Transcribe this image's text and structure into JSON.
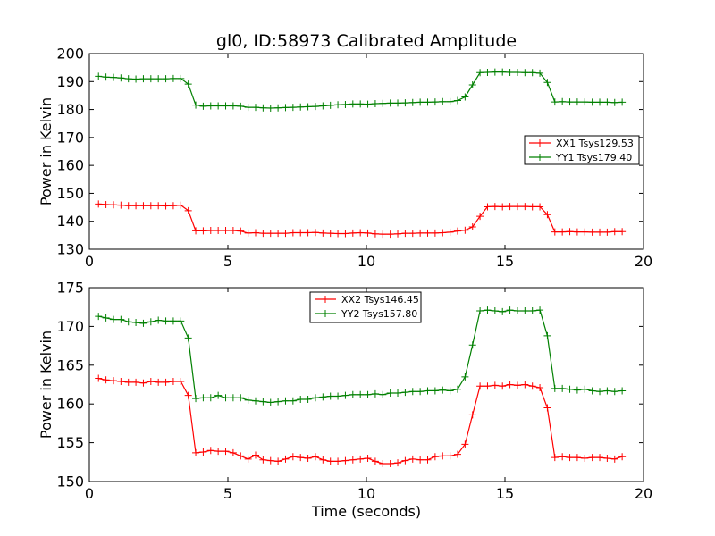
{
  "figure": {
    "title": "gl0, ID:58973 Calibrated Amplitude",
    "xlabel": "Time (seconds)"
  },
  "chart_data": [
    {
      "type": "line",
      "title": "gl0, ID:58973 Calibrated Amplitude",
      "xlabel": "",
      "ylabel": "Power in Kelvin",
      "xlim": [
        0,
        20
      ],
      "ylim": [
        130,
        200
      ],
      "xticks": [
        "0",
        "5",
        "10",
        "15",
        "20"
      ],
      "yticks": [
        "130",
        "140",
        "150",
        "160",
        "170",
        "180",
        "190",
        "200"
      ],
      "grid": false,
      "legend_position": "center-right",
      "x": [
        0.33,
        0.6,
        0.87,
        1.14,
        1.41,
        1.68,
        1.95,
        2.22,
        2.49,
        2.76,
        3.03,
        3.3,
        3.57,
        3.84,
        4.11,
        4.38,
        4.65,
        4.92,
        5.19,
        5.46,
        5.73,
        6.0,
        6.27,
        6.54,
        6.81,
        7.08,
        7.35,
        7.62,
        7.89,
        8.16,
        8.43,
        8.7,
        8.97,
        9.24,
        9.51,
        9.78,
        10.05,
        10.32,
        10.59,
        10.86,
        11.13,
        11.4,
        11.67,
        11.94,
        12.21,
        12.48,
        12.75,
        13.02,
        13.29,
        13.56,
        13.83,
        14.1,
        14.37,
        14.64,
        14.91,
        15.18,
        15.45,
        15.72,
        15.99,
        16.26,
        16.53,
        16.8,
        17.07,
        17.34,
        17.61,
        17.88,
        18.15,
        18.42,
        18.69,
        18.96,
        19.23
      ],
      "series": [
        {
          "name": "XX1 Tsys129.53",
          "color": "#ff0000",
          "values": [
            146.2,
            146.0,
            145.9,
            145.8,
            145.6,
            145.6,
            145.6,
            145.6,
            145.6,
            145.5,
            145.6,
            145.8,
            143.8,
            136.6,
            136.6,
            136.7,
            136.7,
            136.7,
            136.7,
            136.5,
            135.8,
            135.9,
            135.7,
            135.7,
            135.7,
            135.7,
            135.9,
            135.9,
            135.9,
            136.0,
            135.8,
            135.7,
            135.6,
            135.6,
            135.8,
            135.9,
            135.8,
            135.5,
            135.4,
            135.4,
            135.5,
            135.7,
            135.7,
            135.8,
            135.8,
            135.8,
            135.9,
            136.1,
            136.5,
            136.8,
            138.0,
            141.8,
            145.2,
            145.3,
            145.2,
            145.3,
            145.3,
            145.3,
            145.2,
            145.2,
            142.4,
            136.2,
            136.2,
            136.3,
            136.2,
            136.2,
            136.1,
            136.1,
            136.1,
            136.3,
            136.3
          ]
        },
        {
          "name": "YY1 Tsys179.40",
          "color": "#008000",
          "values": [
            191.9,
            191.6,
            191.5,
            191.3,
            191.0,
            190.9,
            191.0,
            191.0,
            191.0,
            191.0,
            191.1,
            191.1,
            189.1,
            181.6,
            181.2,
            181.3,
            181.3,
            181.3,
            181.3,
            181.2,
            180.8,
            180.8,
            180.6,
            180.5,
            180.6,
            180.7,
            180.8,
            180.9,
            181.0,
            181.1,
            181.3,
            181.5,
            181.7,
            181.8,
            182.0,
            182.0,
            181.9,
            182.1,
            182.2,
            182.3,
            182.3,
            182.4,
            182.5,
            182.6,
            182.6,
            182.7,
            182.8,
            182.8,
            183.2,
            184.5,
            188.8,
            193.2,
            193.3,
            193.4,
            193.4,
            193.3,
            193.3,
            193.2,
            193.2,
            193.0,
            189.7,
            182.7,
            182.8,
            182.7,
            182.7,
            182.7,
            182.6,
            182.6,
            182.6,
            182.5,
            182.6
          ]
        }
      ]
    },
    {
      "type": "line",
      "title": "",
      "xlabel": "Time (seconds)",
      "ylabel": "Power in Kelvin",
      "xlim": [
        0,
        20
      ],
      "ylim": [
        150,
        175
      ],
      "xticks": [
        "0",
        "5",
        "10",
        "15",
        "20"
      ],
      "yticks": [
        "150",
        "155",
        "160",
        "165",
        "170",
        "175"
      ],
      "grid": false,
      "legend_position": "top-center",
      "x": [
        0.33,
        0.6,
        0.87,
        1.14,
        1.41,
        1.68,
        1.95,
        2.22,
        2.49,
        2.76,
        3.03,
        3.3,
        3.57,
        3.84,
        4.11,
        4.38,
        4.65,
        4.92,
        5.19,
        5.46,
        5.73,
        6.0,
        6.27,
        6.54,
        6.81,
        7.08,
        7.35,
        7.62,
        7.89,
        8.16,
        8.43,
        8.7,
        8.97,
        9.24,
        9.51,
        9.78,
        10.05,
        10.32,
        10.59,
        10.86,
        11.13,
        11.4,
        11.67,
        11.94,
        12.21,
        12.48,
        12.75,
        13.02,
        13.29,
        13.56,
        13.83,
        14.1,
        14.37,
        14.64,
        14.91,
        15.18,
        15.45,
        15.72,
        15.99,
        16.26,
        16.53,
        16.8,
        17.07,
        17.34,
        17.61,
        17.88,
        18.15,
        18.42,
        18.69,
        18.96,
        19.23
      ],
      "series": [
        {
          "name": "XX2 Tsys146.45",
          "color": "#ff0000",
          "values": [
            163.3,
            163.1,
            163.0,
            162.9,
            162.8,
            162.8,
            162.7,
            162.9,
            162.8,
            162.8,
            162.9,
            162.9,
            161.1,
            153.7,
            153.8,
            154.0,
            153.9,
            153.9,
            153.7,
            153.3,
            152.9,
            153.4,
            152.8,
            152.7,
            152.6,
            152.9,
            153.2,
            153.1,
            153.0,
            153.2,
            152.8,
            152.6,
            152.6,
            152.7,
            152.8,
            152.9,
            153.0,
            152.6,
            152.3,
            152.3,
            152.4,
            152.7,
            152.9,
            152.8,
            152.8,
            153.2,
            153.3,
            153.3,
            153.5,
            154.8,
            158.6,
            162.3,
            162.3,
            162.4,
            162.3,
            162.5,
            162.4,
            162.5,
            162.3,
            162.1,
            159.5,
            153.1,
            153.2,
            153.1,
            153.1,
            153.0,
            153.1,
            153.1,
            153.0,
            152.9,
            153.2
          ]
        },
        {
          "name": "YY2 Tsys157.80",
          "color": "#008000",
          "values": [
            171.3,
            171.1,
            170.9,
            170.9,
            170.6,
            170.5,
            170.4,
            170.6,
            170.8,
            170.7,
            170.7,
            170.7,
            168.5,
            160.7,
            160.8,
            160.8,
            161.1,
            160.8,
            160.8,
            160.8,
            160.5,
            160.4,
            160.3,
            160.2,
            160.3,
            160.4,
            160.4,
            160.6,
            160.6,
            160.8,
            160.9,
            161.0,
            161.0,
            161.1,
            161.2,
            161.2,
            161.2,
            161.3,
            161.2,
            161.4,
            161.4,
            161.5,
            161.6,
            161.6,
            161.7,
            161.7,
            161.8,
            161.7,
            161.9,
            163.5,
            167.6,
            172.0,
            172.1,
            172.0,
            171.9,
            172.1,
            172.0,
            172.0,
            172.0,
            172.1,
            168.8,
            162.0,
            162.0,
            161.9,
            161.8,
            161.9,
            161.7,
            161.6,
            161.7,
            161.6,
            161.7
          ]
        }
      ]
    }
  ]
}
